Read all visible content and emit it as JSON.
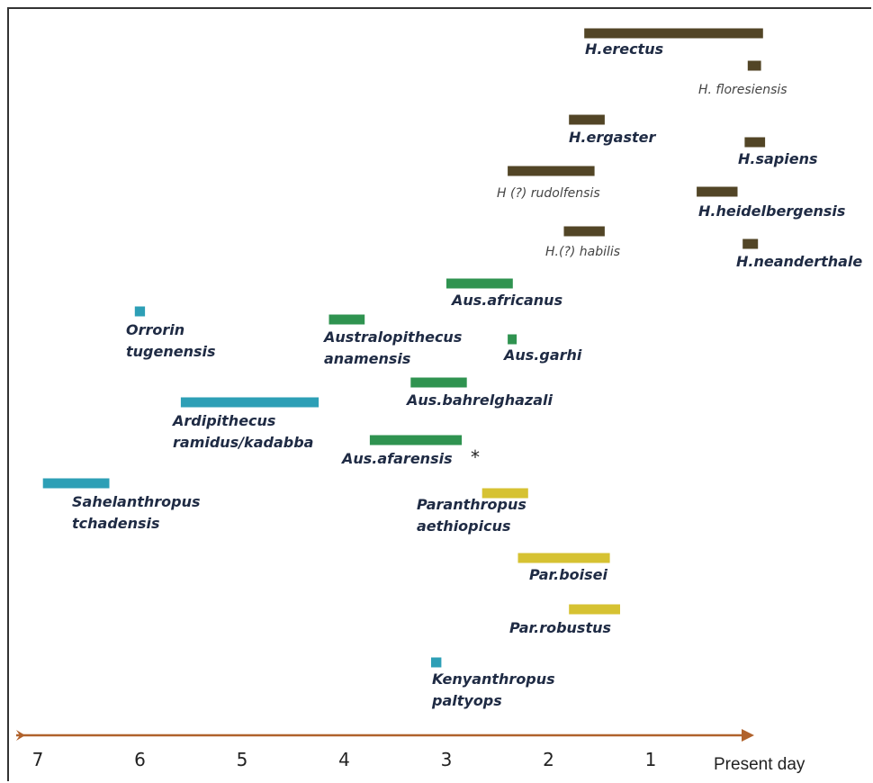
{
  "colors": {
    "homo": "#524526",
    "australopith": "#2f9350",
    "basal": "#2d9fb6",
    "paranthropus": "#d6c232",
    "axis": "#b0622c"
  },
  "chart_data": {
    "type": "timeline",
    "xlabel": "",
    "ylabel": "",
    "x_unit": "million years ago",
    "x_reversed": true,
    "xlim": [
      7.15,
      -0.85
    ],
    "x_ticks": [
      {
        "value": 7,
        "label": "7"
      },
      {
        "value": 6,
        "label": "6"
      },
      {
        "value": 5,
        "label": "5"
      },
      {
        "value": 4,
        "label": "4"
      },
      {
        "value": 3,
        "label": "3"
      },
      {
        "value": 2,
        "label": "2"
      },
      {
        "value": 1,
        "label": "1"
      }
    ],
    "present_label": "Present day",
    "grid": false,
    "legend": "none",
    "annotation": "*",
    "species": [
      {
        "lines": [
          "H.erectus"
        ],
        "start": 1.65,
        "end": -0.1,
        "group": "homo",
        "style": "bold"
      },
      {
        "lines": [
          "H. floresiensis"
        ],
        "start": 0.05,
        "end": -0.08,
        "group": "homo",
        "style": "thin"
      },
      {
        "lines": [
          "H.ergaster"
        ],
        "start": 1.8,
        "end": 1.45,
        "group": "homo",
        "style": "bold"
      },
      {
        "lines": [
          "H.sapiens"
        ],
        "start": 0.08,
        "end": -0.12,
        "group": "homo",
        "style": "bold"
      },
      {
        "lines": [
          "H (?) rudolfensis"
        ],
        "start": 2.4,
        "end": 1.55,
        "group": "homo",
        "style": "thin"
      },
      {
        "lines": [
          "H.heidelbergensis"
        ],
        "start": 0.55,
        "end": 0.15,
        "group": "homo",
        "style": "bold"
      },
      {
        "lines": [
          "H.(?) habilis"
        ],
        "start": 1.85,
        "end": 1.45,
        "group": "homo",
        "style": "thin"
      },
      {
        "lines": [
          "H.neanderthale"
        ],
        "start": 0.1,
        "end": -0.05,
        "group": "homo",
        "style": "bold"
      },
      {
        "lines": [
          "Aus.africanus"
        ],
        "start": 3.0,
        "end": 2.35,
        "group": "australopith",
        "style": "bold"
      },
      {
        "lines": [
          "Orrorin",
          "tugenensis"
        ],
        "start": 6.05,
        "end": 5.95,
        "group": "basal",
        "style": "bold"
      },
      {
        "lines": [
          "Australopithecus",
          "anamensis"
        ],
        "start": 4.15,
        "end": 3.8,
        "group": "australopith",
        "style": "bold"
      },
      {
        "lines": [
          "Aus.garhi"
        ],
        "start": 2.4,
        "end": 2.35,
        "group": "australopith",
        "style": "bold"
      },
      {
        "lines": [
          "Aus.bahrelghazali"
        ],
        "start": 3.35,
        "end": 2.8,
        "group": "australopith",
        "style": "bold"
      },
      {
        "lines": [
          "Ardipithecus",
          "ramidus/kadabba"
        ],
        "start": 5.6,
        "end": 4.25,
        "group": "basal",
        "style": "bold"
      },
      {
        "lines": [
          "Aus.afarensis"
        ],
        "start": 3.75,
        "end": 2.85,
        "group": "australopith",
        "style": "bold"
      },
      {
        "lines": [
          "Sahelanthropus",
          "tchadensis"
        ],
        "start": 6.95,
        "end": 6.3,
        "group": "basal",
        "style": "bold"
      },
      {
        "lines": [
          "Paranthropus",
          "aethiopicus"
        ],
        "start": 2.65,
        "end": 2.2,
        "group": "paranthropus",
        "style": "bold"
      },
      {
        "lines": [
          "Par.boisei"
        ],
        "start": 2.3,
        "end": 1.4,
        "group": "paranthropus",
        "style": "bold"
      },
      {
        "lines": [
          "Par.robustus"
        ],
        "start": 1.8,
        "end": 1.3,
        "group": "paranthropus",
        "style": "bold"
      },
      {
        "lines": [
          "Kenyanthropus",
          "paltyops"
        ],
        "start": 3.15,
        "end": 3.05,
        "group": "basal",
        "style": "bold"
      }
    ]
  }
}
